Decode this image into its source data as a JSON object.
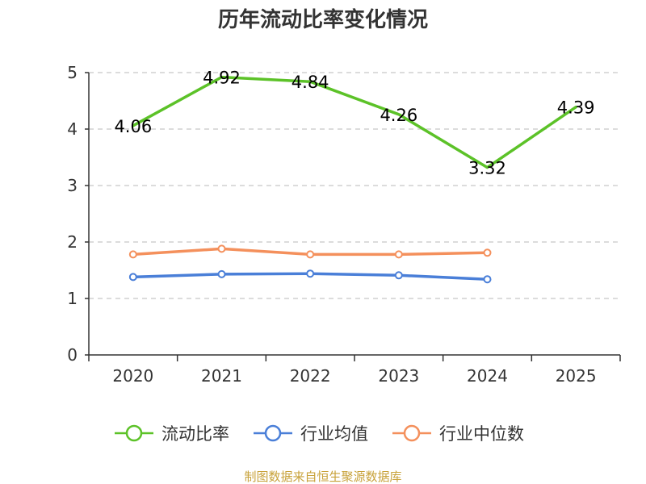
{
  "chart_data": {
    "type": "line",
    "title": "历年流动比率变化情况",
    "categories": [
      "2020",
      "2021",
      "2022",
      "2023",
      "2024",
      "2025"
    ],
    "ylim": [
      0,
      5
    ],
    "yticks": [
      0,
      1,
      2,
      3,
      4,
      5
    ],
    "xlabel": "",
    "ylabel": "",
    "grid": true,
    "series": [
      {
        "name": "流动比率",
        "color": "#5cc228",
        "values": [
          4.06,
          4.92,
          4.84,
          4.26,
          3.32,
          4.39
        ],
        "labels": [
          "4.06",
          "4.92",
          "4.84",
          "4.26",
          "3.32",
          "4.39"
        ],
        "show_labels": true
      },
      {
        "name": "行业均值",
        "color": "#4a7fd8",
        "values": [
          1.38,
          1.43,
          1.44,
          1.41,
          1.34,
          null
        ],
        "show_labels": false
      },
      {
        "name": "行业中位数",
        "color": "#f4905c",
        "values": [
          1.78,
          1.88,
          1.78,
          1.78,
          1.81,
          null
        ],
        "show_labels": false
      }
    ],
    "legend_position": "bottom",
    "source": "制图数据来自恒生聚源数据库"
  }
}
